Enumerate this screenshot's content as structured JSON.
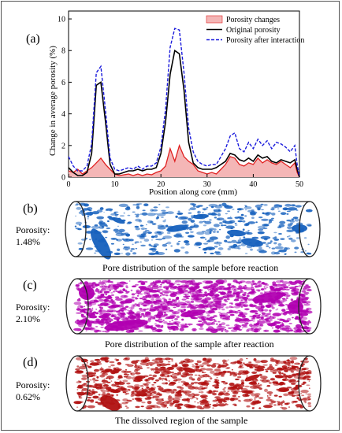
{
  "figure": {
    "panels": [
      {
        "letter": "(a)"
      },
      {
        "letter": "(b)",
        "porosity_label": "Porosity:",
        "porosity_value": "1.48%",
        "caption": "Pore distribution of the sample before reaction"
      },
      {
        "letter": "(c)",
        "porosity_label": "Porosity:",
        "porosity_value": "2.10%",
        "caption": "Pore distribution of the sample after reaction"
      },
      {
        "letter": "(d)",
        "porosity_label": "Porosity:",
        "porosity_value": "0.62%",
        "caption": "The dissolved region of the sample"
      }
    ],
    "colors": {
      "original": "#000000",
      "after": "#1a1adc",
      "changes_fill": "#f4b6b6",
      "changes_line": "#e02020",
      "before_pores": "#1560bd",
      "after_pores": "#b100b1",
      "dissolved": "#b01010"
    }
  },
  "chart_data": {
    "type": "line",
    "title": "",
    "xlabel": "Position along core (mm)",
    "ylabel": "Change in average porosity (%)",
    "xlim": [
      0,
      50
    ],
    "ylim": [
      0,
      10.5
    ],
    "xticks": [
      0,
      10,
      20,
      30,
      40,
      50
    ],
    "yticks": [
      0,
      2,
      4,
      6,
      8,
      10
    ],
    "legend_position": "top-right",
    "series": [
      {
        "name": "Porosity changes",
        "style": "area",
        "x": [
          0,
          1,
          2,
          3,
          4,
          5,
          6,
          7,
          8,
          9,
          10,
          11,
          12,
          13,
          14,
          15,
          16,
          17,
          18,
          19,
          20,
          21,
          22,
          23,
          24,
          25,
          26,
          27,
          28,
          29,
          30,
          31,
          32,
          33,
          34,
          35,
          36,
          37,
          38,
          39,
          40,
          41,
          42,
          43,
          44,
          45,
          46,
          47,
          48,
          49,
          49.5,
          50
        ],
        "values": [
          0.4,
          0.3,
          0.5,
          0.2,
          0.4,
          0.6,
          0.9,
          1.2,
          0.8,
          0.5,
          0.2,
          0.1,
          0.15,
          0.2,
          0.1,
          0.2,
          0.1,
          0.2,
          0.15,
          0.3,
          0.4,
          0.7,
          1.8,
          1.0,
          2.0,
          1.3,
          1.0,
          0.8,
          0.4,
          0.3,
          0.2,
          0.3,
          0.2,
          0.5,
          0.8,
          1.3,
          1.2,
          0.8,
          0.7,
          0.9,
          0.8,
          1.2,
          0.9,
          1.1,
          0.9,
          0.8,
          1.0,
          0.8,
          0.6,
          0.9,
          0.3,
          0.0
        ]
      },
      {
        "name": "Original porosity",
        "style": "solid",
        "x": [
          0,
          1,
          2,
          3,
          4,
          5,
          6,
          7,
          8,
          9,
          10,
          11,
          12,
          13,
          14,
          15,
          16,
          17,
          18,
          19,
          20,
          21,
          22,
          23,
          24,
          25,
          26,
          27,
          28,
          29,
          30,
          31,
          32,
          33,
          34,
          35,
          36,
          37,
          38,
          39,
          40,
          41,
          42,
          43,
          44,
          45,
          46,
          47,
          48,
          49,
          49.5,
          50
        ],
        "values": [
          0.6,
          0.3,
          0.1,
          0.1,
          0.3,
          1.5,
          5.8,
          6.0,
          3.5,
          0.8,
          0.2,
          0.2,
          0.3,
          0.4,
          0.4,
          0.5,
          0.4,
          0.5,
          0.5,
          0.6,
          1.5,
          3.5,
          6.5,
          8.0,
          7.8,
          5.5,
          2.2,
          0.9,
          0.6,
          0.5,
          0.5,
          0.5,
          0.6,
          0.8,
          1.0,
          1.5,
          1.4,
          1.1,
          1.0,
          1.2,
          1.0,
          1.4,
          1.2,
          1.3,
          1.0,
          0.9,
          1.1,
          1.0,
          0.9,
          1.1,
          0.5,
          0.0
        ]
      },
      {
        "name": "Porosity after interaction",
        "style": "dashed",
        "x": [
          0,
          1,
          2,
          3,
          4,
          5,
          6,
          7,
          8,
          9,
          10,
          11,
          12,
          13,
          14,
          15,
          16,
          17,
          18,
          19,
          20,
          21,
          22,
          23,
          24,
          25,
          26,
          27,
          28,
          29,
          30,
          31,
          32,
          33,
          34,
          35,
          36,
          37,
          38,
          39,
          40,
          41,
          42,
          43,
          44,
          45,
          46,
          47,
          48,
          49,
          49.5,
          50
        ],
        "values": [
          1.3,
          0.7,
          0.4,
          0.4,
          0.7,
          2.1,
          6.6,
          7.0,
          4.2,
          1.2,
          0.5,
          0.4,
          0.5,
          0.6,
          0.5,
          0.7,
          0.5,
          0.7,
          0.7,
          0.9,
          1.9,
          4.3,
          8.2,
          9.4,
          9.3,
          6.6,
          3.1,
          1.6,
          1.0,
          0.8,
          0.7,
          0.8,
          0.8,
          1.3,
          1.8,
          2.6,
          2.8,
          1.8,
          1.6,
          2.2,
          1.8,
          2.4,
          2.0,
          2.3,
          1.8,
          2.2,
          2.1,
          1.9,
          1.6,
          2.0,
          0.8,
          0.0
        ]
      }
    ]
  }
}
